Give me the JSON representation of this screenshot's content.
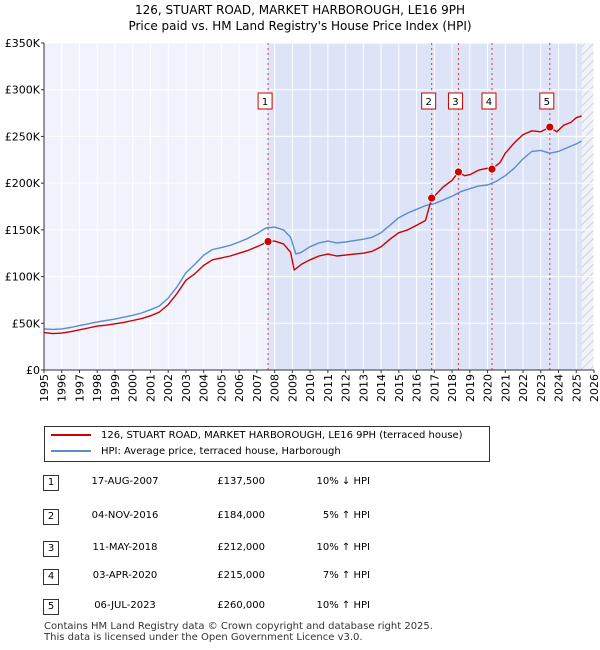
{
  "title_line1": "126, STUART ROAD, MARKET HARBOROUGH, LE16 9PH",
  "title_line2": "Price paid vs. HM Land Registry's House Price Index (HPI)",
  "chart_data": {
    "type": "line",
    "title": "126, STUART ROAD, MARKET HARBOROUGH, LE16 9PH — Price paid vs. HM Land Registry's House Price Index (HPI)",
    "xlabel": "",
    "ylabel": "",
    "xlim": [
      1995,
      2026
    ],
    "ylim": [
      0,
      350000
    ],
    "x_ticks": [
      1995,
      1996,
      1997,
      1998,
      1999,
      2000,
      2001,
      2002,
      2003,
      2004,
      2005,
      2006,
      2007,
      2008,
      2009,
      2010,
      2011,
      2012,
      2013,
      2014,
      2015,
      2016,
      2017,
      2018,
      2019,
      2020,
      2021,
      2022,
      2023,
      2024,
      2025,
      2026
    ],
    "y_ticks": [
      0,
      50000,
      100000,
      150000,
      200000,
      250000,
      300000,
      350000
    ],
    "y_tick_labels": [
      "£0",
      "£50K",
      "£100K",
      "£150K",
      "£200K",
      "£250K",
      "£300K",
      "£350K"
    ],
    "grid": true,
    "ownership_shading": {
      "from": 2007.63,
      "to": 2025.3,
      "color": "#dde4f7"
    },
    "hatched_future_from": 2025.3,
    "series": [
      {
        "name": "126, STUART ROAD, MARKET HARBOROUGH, LE16 9PH (terraced house)",
        "color": "#cc0000",
        "x": [
          1995.0,
          1995.5,
          1996.0,
          1996.5,
          1997.0,
          1997.5,
          1998.0,
          1998.5,
          1999.0,
          1999.5,
          2000.0,
          2000.5,
          2001.0,
          2001.5,
          2002.0,
          2002.5,
          2003.0,
          2003.5,
          2004.0,
          2004.5,
          2005.0,
          2005.5,
          2006.0,
          2006.5,
          2007.0,
          2007.63,
          2008.0,
          2008.5,
          2008.9,
          2009.1,
          2009.5,
          2010.0,
          2010.5,
          2011.0,
          2011.5,
          2012.0,
          2012.5,
          2013.0,
          2013.5,
          2014.0,
          2014.5,
          2015.0,
          2015.5,
          2016.0,
          2016.5,
          2016.85,
          2017.0,
          2017.5,
          2018.0,
          2018.36,
          2018.7,
          2019.0,
          2019.5,
          2020.0,
          2020.25,
          2020.7,
          2021.0,
          2021.5,
          2022.0,
          2022.5,
          2023.0,
          2023.51,
          2023.9,
          2024.3,
          2024.7,
          2025.0,
          2025.3
        ],
        "values": [
          40000,
          39000,
          39500,
          41000,
          43000,
          45000,
          47000,
          48000,
          49500,
          51000,
          53000,
          55000,
          58000,
          62000,
          70000,
          82000,
          96000,
          103000,
          112000,
          118000,
          120000,
          122000,
          125000,
          128000,
          132000,
          137500,
          138000,
          135000,
          126000,
          107000,
          113000,
          118000,
          122000,
          124000,
          122000,
          123000,
          124000,
          125000,
          127000,
          132000,
          140000,
          147000,
          150000,
          155000,
          160000,
          184000,
          186000,
          196000,
          203000,
          212000,
          208000,
          209000,
          214000,
          216000,
          215000,
          222000,
          232000,
          243000,
          252000,
          256000,
          255000,
          260000,
          255000,
          262000,
          265000,
          270000,
          272000
        ]
      },
      {
        "name": "HPI: Average price, terraced house, Harborough",
        "color": "#5b8bd0",
        "x": [
          1995.0,
          1995.5,
          1996.0,
          1996.5,
          1997.0,
          1997.5,
          1998.0,
          1998.5,
          1999.0,
          1999.5,
          2000.0,
          2000.5,
          2001.0,
          2001.5,
          2002.0,
          2002.5,
          2003.0,
          2003.5,
          2004.0,
          2004.5,
          2005.0,
          2005.5,
          2006.0,
          2006.5,
          2007.0,
          2007.5,
          2008.0,
          2008.5,
          2008.9,
          2009.2,
          2009.5,
          2010.0,
          2010.5,
          2011.0,
          2011.5,
          2012.0,
          2012.5,
          2013.0,
          2013.5,
          2014.0,
          2014.5,
          2015.0,
          2015.5,
          2016.0,
          2016.5,
          2017.0,
          2017.5,
          2018.0,
          2018.5,
          2019.0,
          2019.5,
          2020.0,
          2020.5,
          2021.0,
          2021.5,
          2022.0,
          2022.5,
          2023.0,
          2023.5,
          2024.0,
          2024.5,
          2025.0,
          2025.3
        ],
        "values": [
          44000,
          43500,
          44000,
          45500,
          47500,
          49500,
          51500,
          53000,
          54500,
          56500,
          58500,
          61000,
          64500,
          68500,
          77000,
          89000,
          104000,
          113000,
          123000,
          129000,
          131000,
          133500,
          137000,
          141000,
          146000,
          152000,
          153000,
          150000,
          142000,
          124000,
          126000,
          132000,
          136000,
          138000,
          136000,
          137000,
          138500,
          140000,
          142000,
          147000,
          155000,
          163000,
          168000,
          172000,
          176000,
          178000,
          182000,
          186000,
          191000,
          194000,
          197000,
          198000,
          202000,
          208000,
          216000,
          226000,
          234000,
          235000,
          232000,
          234000,
          238000,
          242000,
          245000
        ]
      }
    ],
    "sales": [
      {
        "label": "1",
        "x": 2007.63,
        "value": 137500,
        "date": "17-AUG-2007",
        "price": "£137,500",
        "hpi": "10% ↓ HPI"
      },
      {
        "label": "2",
        "x": 2016.85,
        "value": 184000,
        "date": "04-NOV-2016",
        "price": "£184,000",
        "hpi": "5% ↑ HPI"
      },
      {
        "label": "3",
        "x": 2018.36,
        "value": 212000,
        "date": "11-MAY-2018",
        "price": "£212,000",
        "hpi": "10% ↑ HPI"
      },
      {
        "label": "4",
        "x": 2020.25,
        "value": 215000,
        "date": "03-APR-2020",
        "price": "£215,000",
        "hpi": "7% ↑ HPI"
      },
      {
        "label": "5",
        "x": 2023.51,
        "value": 260000,
        "date": "06-JUL-2023",
        "price": "£260,000",
        "hpi": "10% ↑ HPI"
      }
    ]
  },
  "legend": [
    {
      "label": "126, STUART ROAD, MARKET HARBOROUGH, LE16 9PH (terraced house)",
      "color": "#cc0000"
    },
    {
      "label": "HPI: Average price, terraced house, Harborough",
      "color": "#5b8bd0"
    }
  ],
  "footer_line1": "Contains HM Land Registry data © Crown copyright and database right 2025.",
  "footer_line2": "This data is licensed under the Open Government Licence v3.0."
}
